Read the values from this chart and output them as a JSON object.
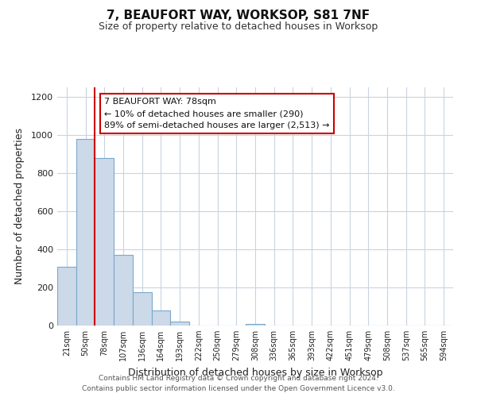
{
  "title": "7, BEAUFORT WAY, WORKSOP, S81 7NF",
  "subtitle": "Size of property relative to detached houses in Worksop",
  "xlabel": "Distribution of detached houses by size in Worksop",
  "ylabel": "Number of detached properties",
  "bar_labels": [
    "21sqm",
    "50sqm",
    "78sqm",
    "107sqm",
    "136sqm",
    "164sqm",
    "193sqm",
    "222sqm",
    "250sqm",
    "279sqm",
    "308sqm",
    "336sqm",
    "365sqm",
    "393sqm",
    "422sqm",
    "451sqm",
    "479sqm",
    "508sqm",
    "537sqm",
    "565sqm",
    "594sqm"
  ],
  "bar_values": [
    310,
    980,
    880,
    370,
    175,
    80,
    20,
    0,
    0,
    0,
    10,
    0,
    0,
    0,
    0,
    0,
    0,
    0,
    0,
    0,
    0
  ],
  "bar_color": "#ccd9e8",
  "bar_edge_color": "#7aa8cc",
  "vline_color": "#cc0000",
  "annotation_line1": "7 BEAUFORT WAY: 78sqm",
  "annotation_line2": "← 10% of detached houses are smaller (290)",
  "annotation_line3": "89% of semi-detached houses are larger (2,513) →",
  "annotation_box_facecolor": "#ffffff",
  "annotation_box_edgecolor": "#cc0000",
  "ylim": [
    0,
    1250
  ],
  "yticks": [
    0,
    200,
    400,
    600,
    800,
    1000,
    1200
  ],
  "footer_line1": "Contains HM Land Registry data © Crown copyright and database right 2024.",
  "footer_line2": "Contains public sector information licensed under the Open Government Licence v3.0.",
  "background_color": "#ffffff",
  "grid_color": "#c8d4e0"
}
